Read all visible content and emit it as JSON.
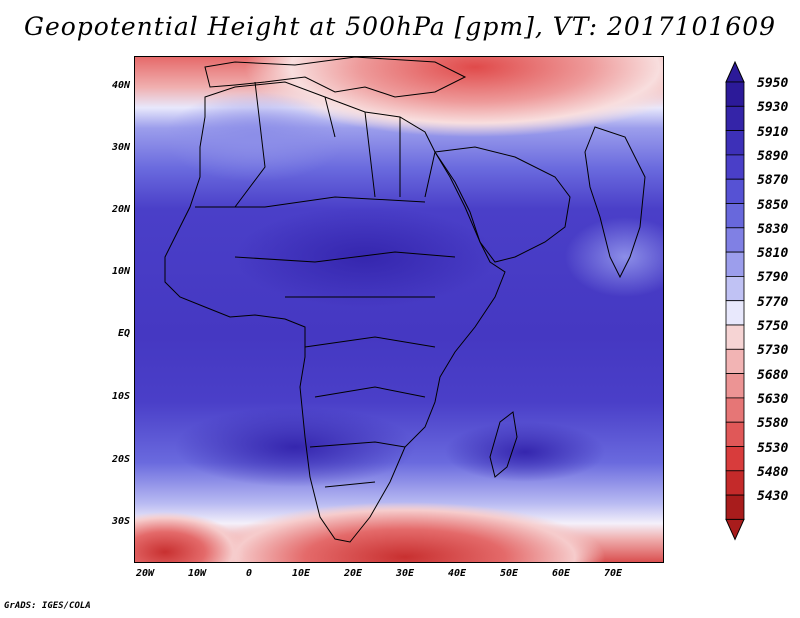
{
  "title": "Geopotential Height at 500hPa [gpm], VT: 2017101609",
  "credit": "GrADS: IGES/COLA",
  "map": {
    "lat_labels": [
      "40N",
      "30N",
      "20N",
      "10N",
      "EQ",
      "10S",
      "20S",
      "30S"
    ],
    "lon_labels": [
      "20W",
      "10W",
      "0",
      "10E",
      "20E",
      "30E",
      "40E",
      "50E",
      "60E",
      "70E"
    ],
    "lat_values": [
      40,
      30,
      20,
      10,
      0,
      -10,
      -20,
      -30
    ],
    "lon_values": [
      -20,
      -10,
      0,
      10,
      20,
      30,
      40,
      50,
      60,
      70
    ],
    "lon_range": [
      -22,
      80
    ],
    "lat_range": [
      -37,
      45
    ]
  },
  "colorbar": {
    "levels": [
      "5950",
      "5930",
      "5910",
      "5890",
      "5870",
      "5850",
      "5830",
      "5810",
      "5790",
      "5770",
      "5750",
      "5730",
      "5680",
      "5630",
      "5580",
      "5530",
      "5480",
      "5430"
    ],
    "colors": [
      "#2c1a99",
      "#3424a8",
      "#3d30b8",
      "#4a3fc8",
      "#5652d4",
      "#6868dc",
      "#8080e4",
      "#9c9eec",
      "#c0c2f4",
      "#e8e8fc",
      "#f6d4d4",
      "#f2b4b4",
      "#ec9494",
      "#e67676",
      "#e05858",
      "#d83c3c",
      "#c42a2a",
      "#a81c1c"
    ]
  }
}
